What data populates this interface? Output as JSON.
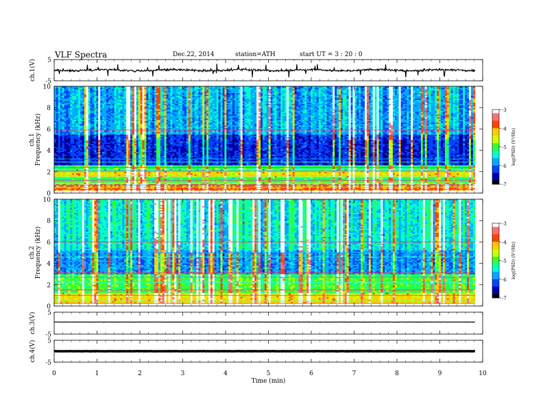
{
  "header": {
    "title": "VLF  Spectra",
    "date": "Dec.22, 2014",
    "station": "station=ATH",
    "start_ut": "start  UT  =   3  : 20 : 0"
  },
  "chart_data": [
    {
      "id": "ch1-waveform",
      "type": "line",
      "ylabel": "ch.1(V)",
      "ylim": [
        -5,
        5
      ],
      "yticks": [
        "5",
        "-5"
      ],
      "baseline": 0,
      "style": "noisy-trace-with-spikes",
      "color": "#000000"
    },
    {
      "id": "ch1-spectrogram",
      "type": "heatmap",
      "ylabel_line1": "ch.1",
      "ylabel_line2": "Frequency (kHz)",
      "ylim": [
        0,
        10
      ],
      "yticks": [
        "0",
        "2",
        "4",
        "6",
        "8",
        "10"
      ],
      "xlim": [
        0,
        10
      ],
      "colorbar": {
        "label": "log(PSD) (V²/Hz)",
        "range": [
          -7,
          -3
        ],
        "ticks": [
          "-3",
          "-4",
          "-5",
          "-6",
          "-7"
        ]
      }
    },
    {
      "id": "ch2-spectrogram",
      "type": "heatmap",
      "ylabel_line1": "ch.2",
      "ylabel_line2": "Frequency (kHz)",
      "ylim": [
        0,
        10
      ],
      "yticks": [
        "0",
        "2",
        "4",
        "6",
        "8",
        "10"
      ],
      "xlim": [
        0,
        10
      ],
      "colorbar": {
        "label": "log(PSD) (V²/Hz)",
        "range": [
          -7,
          -3
        ],
        "ticks": [
          "-3",
          "-4",
          "-5",
          "-6",
          "-7"
        ]
      }
    },
    {
      "id": "ch3-waveform",
      "type": "line",
      "ylabel": "ch.3(V)",
      "ylim": [
        -5,
        5
      ],
      "yticks": [
        "5",
        "-5"
      ],
      "baseline": 0.5,
      "style": "thin-flat-trace",
      "color": "#000000"
    },
    {
      "id": "ch4-waveform",
      "type": "line",
      "ylabel": "ch.4(V)",
      "ylim": [
        -5,
        5
      ],
      "yticks": [
        "5",
        "-5"
      ],
      "baseline": 0,
      "style": "thick-flat-trace",
      "color": "#000000"
    }
  ],
  "xaxis": {
    "label": "Time  (min)",
    "range": [
      0,
      10
    ],
    "data_end": 9.82,
    "ticks": [
      "0",
      "1",
      "2",
      "3",
      "4",
      "5",
      "6",
      "7",
      "8",
      "9",
      "10"
    ]
  },
  "colormap": [
    "#000000",
    "#0000aa",
    "#0044ff",
    "#00aaff",
    "#00ffcc",
    "#33ff33",
    "#ccff00",
    "#ffcc00",
    "#ff4400",
    "#ff6f6f",
    "#ffffff"
  ]
}
